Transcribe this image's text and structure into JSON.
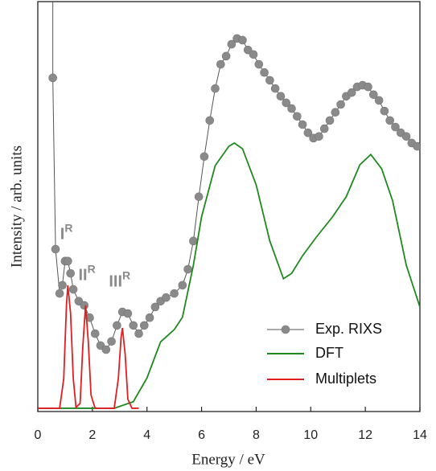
{
  "chart_data": {
    "type": "line",
    "xlabel": "Energy / eV",
    "ylabel": "Intensity / arb. units",
    "xlim": [
      0,
      14
    ],
    "xticks": [
      0,
      2,
      4,
      6,
      8,
      10,
      12,
      14
    ],
    "ylim": [
      0,
      100
    ],
    "legend": "lower right",
    "annotations": [
      {
        "text": "I",
        "sup": "R",
        "x": 1.05,
        "y": 43
      },
      {
        "text": "II",
        "sup": "R",
        "x": 1.8,
        "y": 33
      },
      {
        "text": "III",
        "sup": "R",
        "x": 3.0,
        "y": 31.5
      }
    ],
    "series": [
      {
        "name": "Exp. RIXS",
        "color": "#8a8a8a",
        "markers": true,
        "x": [
          0.55,
          0.65,
          0.8,
          0.9,
          1.0,
          1.1,
          1.2,
          1.3,
          1.5,
          1.7,
          1.9,
          2.1,
          2.3,
          2.5,
          2.7,
          2.9,
          3.1,
          3.3,
          3.5,
          3.7,
          3.9,
          4.1,
          4.3,
          4.5,
          4.7,
          5.0,
          5.3,
          5.5,
          5.7,
          5.9,
          6.1,
          6.3,
          6.5,
          6.7,
          6.9,
          7.1,
          7.3,
          7.5,
          7.7,
          7.9,
          8.1,
          8.3,
          8.5,
          8.7,
          8.9,
          9.1,
          9.3,
          9.5,
          9.7,
          9.9,
          10.1,
          10.3,
          10.5,
          10.7,
          10.9,
          11.1,
          11.3,
          11.5,
          11.7,
          11.9,
          12.1,
          12.3,
          12.5,
          12.7,
          12.9,
          13.1,
          13.3,
          13.5,
          13.7,
          13.9
        ],
        "values": [
          81.4,
          39.6,
          28.8,
          30.8,
          36.7,
          36.7,
          33.7,
          29.8,
          26.9,
          25.9,
          22.9,
          19.0,
          16.1,
          15.1,
          17.1,
          21.0,
          24.3,
          23.9,
          21.0,
          19.0,
          21.0,
          22.9,
          25.5,
          26.9,
          27.8,
          28.8,
          30.8,
          34.7,
          41.6,
          52.4,
          62.2,
          71.0,
          78.8,
          84.7,
          86.7,
          89.6,
          91.0,
          90.6,
          88.2,
          87.1,
          84.7,
          82.7,
          80.8,
          78.8,
          76.9,
          75.3,
          73.9,
          72.0,
          70.0,
          68.0,
          66.7,
          67.1,
          69.0,
          71.0,
          73.0,
          74.9,
          76.9,
          77.8,
          79.2,
          79.6,
          79.2,
          77.3,
          75.9,
          73.3,
          71.0,
          69.4,
          68.0,
          67.1,
          65.5,
          64.7
        ]
      },
      {
        "name": "DFT",
        "color": "#1e8a1e",
        "x": [
          0,
          2.8,
          3.5,
          4.0,
          4.5,
          5.0,
          5.3,
          5.7,
          6.0,
          6.5,
          7.0,
          7.2,
          7.5,
          8.0,
          8.5,
          9.0,
          9.3,
          9.7,
          10.2,
          10.8,
          11.3,
          11.8,
          12.2,
          12.6,
          13.0,
          13.5,
          14.0
        ],
        "values": [
          0.8,
          0.8,
          2.4,
          8.2,
          17.0,
          20.0,
          23.0,
          35.7,
          47.5,
          60.0,
          64.7,
          65.5,
          64.1,
          55.3,
          41.6,
          32.4,
          33.7,
          38.0,
          42.5,
          47.5,
          52.4,
          60.2,
          62.7,
          59.2,
          51.4,
          35.7,
          25.5
        ]
      },
      {
        "name": "Multiplets",
        "color": "#e02020",
        "x": [
          0,
          0.8,
          0.95,
          1.05,
          1.1,
          1.2,
          1.3,
          1.4,
          1.55,
          1.65,
          1.75,
          1.85,
          1.95,
          2.1,
          2.8,
          2.95,
          3.05,
          3.1,
          3.2,
          3.3,
          3.45,
          3.7
        ],
        "values": [
          0.8,
          0.8,
          8,
          26,
          30.8,
          24,
          8,
          1,
          2,
          16,
          25.9,
          17,
          4,
          0.8,
          0.8,
          8,
          18,
          20.4,
          14,
          3,
          0.8,
          0.8
        ]
      }
    ]
  }
}
